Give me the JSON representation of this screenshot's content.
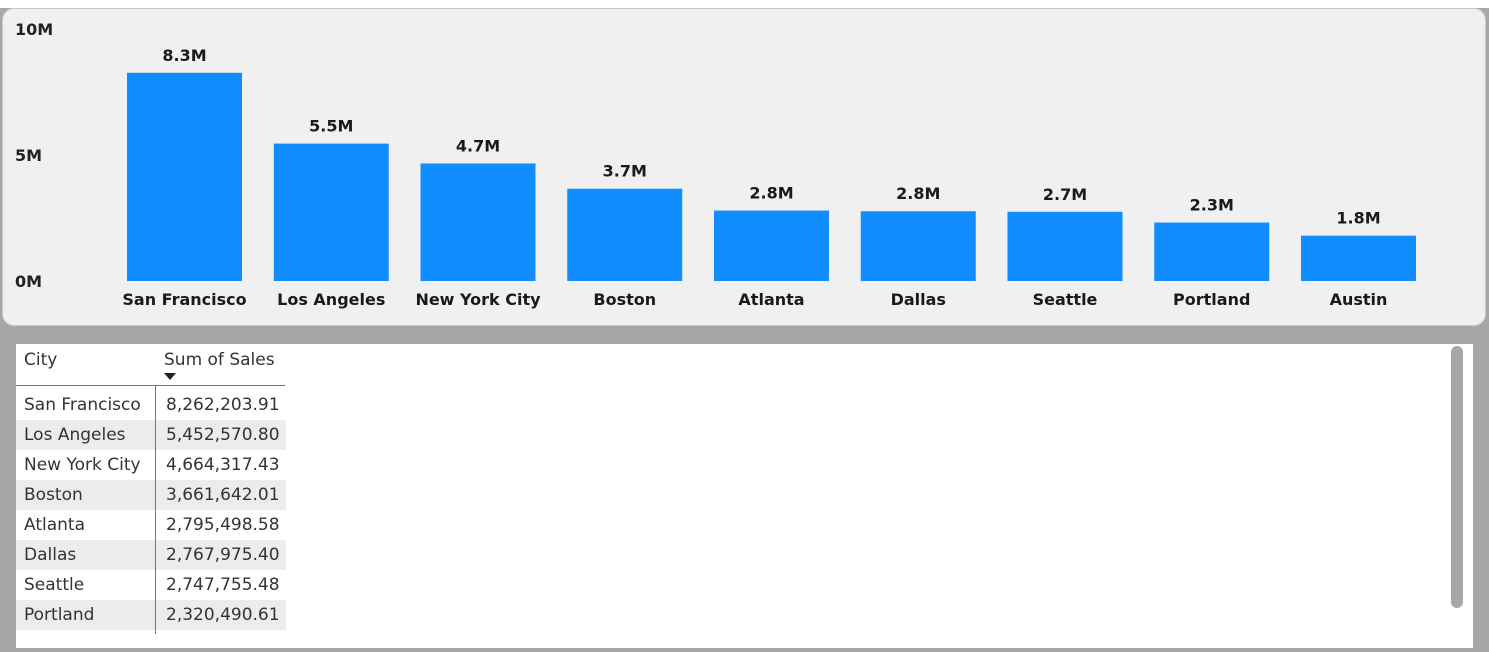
{
  "chart_data": {
    "type": "bar",
    "categories": [
      "San Francisco",
      "Los Angeles",
      "New York City",
      "Boston",
      "Atlanta",
      "Dallas",
      "Seattle",
      "Portland",
      "Austin"
    ],
    "values": [
      8262203.91,
      5452570.8,
      4664317.43,
      3661642.01,
      2795498.58,
      2767975.4,
      2747755.48,
      2320490.61,
      1800000
    ],
    "data_labels": [
      "8.3M",
      "5.5M",
      "4.7M",
      "3.7M",
      "2.8M",
      "2.8M",
      "2.7M",
      "2.3M",
      "1.8M"
    ],
    "ylim": [
      0,
      10000000
    ],
    "yticks": [
      0,
      5000000,
      10000000
    ],
    "ytick_labels": [
      "0M",
      "5M",
      "10M"
    ],
    "title": "",
    "xlabel": "",
    "ylabel": "",
    "grid": false,
    "colors": {
      "bar": "#118dff"
    }
  },
  "table": {
    "headers": {
      "city": "City",
      "sales": "Sum of Sales"
    },
    "sort_icon": "sort-descending-icon",
    "rows": [
      {
        "city": "San Francisco",
        "sales": "8,262,203.91"
      },
      {
        "city": "Los Angeles",
        "sales": "5,452,570.80"
      },
      {
        "city": "New York City",
        "sales": "4,664,317.43"
      },
      {
        "city": "Boston",
        "sales": "3,661,642.01"
      },
      {
        "city": "Atlanta",
        "sales": "2,795,498.58"
      },
      {
        "city": "Dallas",
        "sales": "2,767,975.40"
      },
      {
        "city": "Seattle",
        "sales": "2,747,755.48"
      },
      {
        "city": "Portland",
        "sales": "2,320,490.61"
      }
    ]
  }
}
